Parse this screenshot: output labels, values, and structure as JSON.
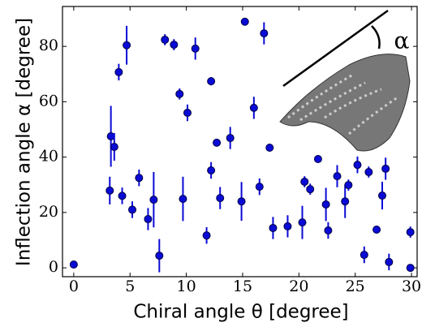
{
  "chart_data": {
    "type": "scatter",
    "xlabel": "Chiral angle θ [degree]",
    "ylabel": "Inflection angle α [degree]",
    "annotation": "α",
    "xlim": [
      -1,
      30.5
    ],
    "ylim": [
      -3.2,
      94.4
    ],
    "xticks": [
      0,
      5,
      10,
      15,
      20,
      25,
      30
    ],
    "yticks": [
      0,
      20,
      40,
      60,
      80
    ],
    "series": [
      {
        "color": "#0a0ad6",
        "x": [
          0,
          3.2,
          3.3,
          3.6,
          4.0,
          4.3,
          4.7,
          5.2,
          5.8,
          6.6,
          7.1,
          7.6,
          8.1,
          8.9,
          9.4,
          9.7,
          10.1,
          10.8,
          11.8,
          12.2,
          12.2,
          12.7,
          13.0,
          13.9,
          14.9,
          15.2,
          16.0,
          16.5,
          16.9,
          17.4,
          17.7,
          19.0,
          20.3,
          20.5,
          21.0,
          21.7,
          22.4,
          22.6,
          23.4,
          24.1,
          24.4,
          25.2,
          25.8,
          26.2,
          26.9,
          27.4,
          27.7,
          28.0,
          29.9,
          29.9
        ],
        "values": [
          1.2,
          27.9,
          47.5,
          43.7,
          70.7,
          26,
          80.4,
          21,
          32.5,
          17.6,
          24.6,
          4.4,
          82.4,
          80.6,
          62.8,
          24.9,
          56,
          79.2,
          11.7,
          35.2,
          67.4,
          45.2,
          25.2,
          46.9,
          24,
          88.9,
          57.8,
          29.3,
          84.7,
          43.4,
          14.4,
          15,
          16.4,
          31.1,
          28.4,
          39.3,
          22.9,
          13.5,
          33.1,
          24,
          29.9,
          37.2,
          4.7,
          34.6,
          13.8,
          26.1,
          35.8,
          2.1,
          12.9,
          0
        ],
        "errors": [
          null,
          5,
          11,
          5,
          3,
          3,
          7,
          3,
          3,
          4,
          10,
          6,
          2,
          2,
          2,
          8,
          3,
          4,
          3,
          3,
          1.5,
          1,
          4,
          4,
          7,
          1,
          4,
          3,
          4,
          null,
          4,
          4,
          6,
          2,
          2,
          null,
          6,
          3,
          4,
          6,
          2,
          3,
          3,
          2,
          null,
          5,
          4,
          3,
          2,
          null
        ]
      }
    ]
  }
}
